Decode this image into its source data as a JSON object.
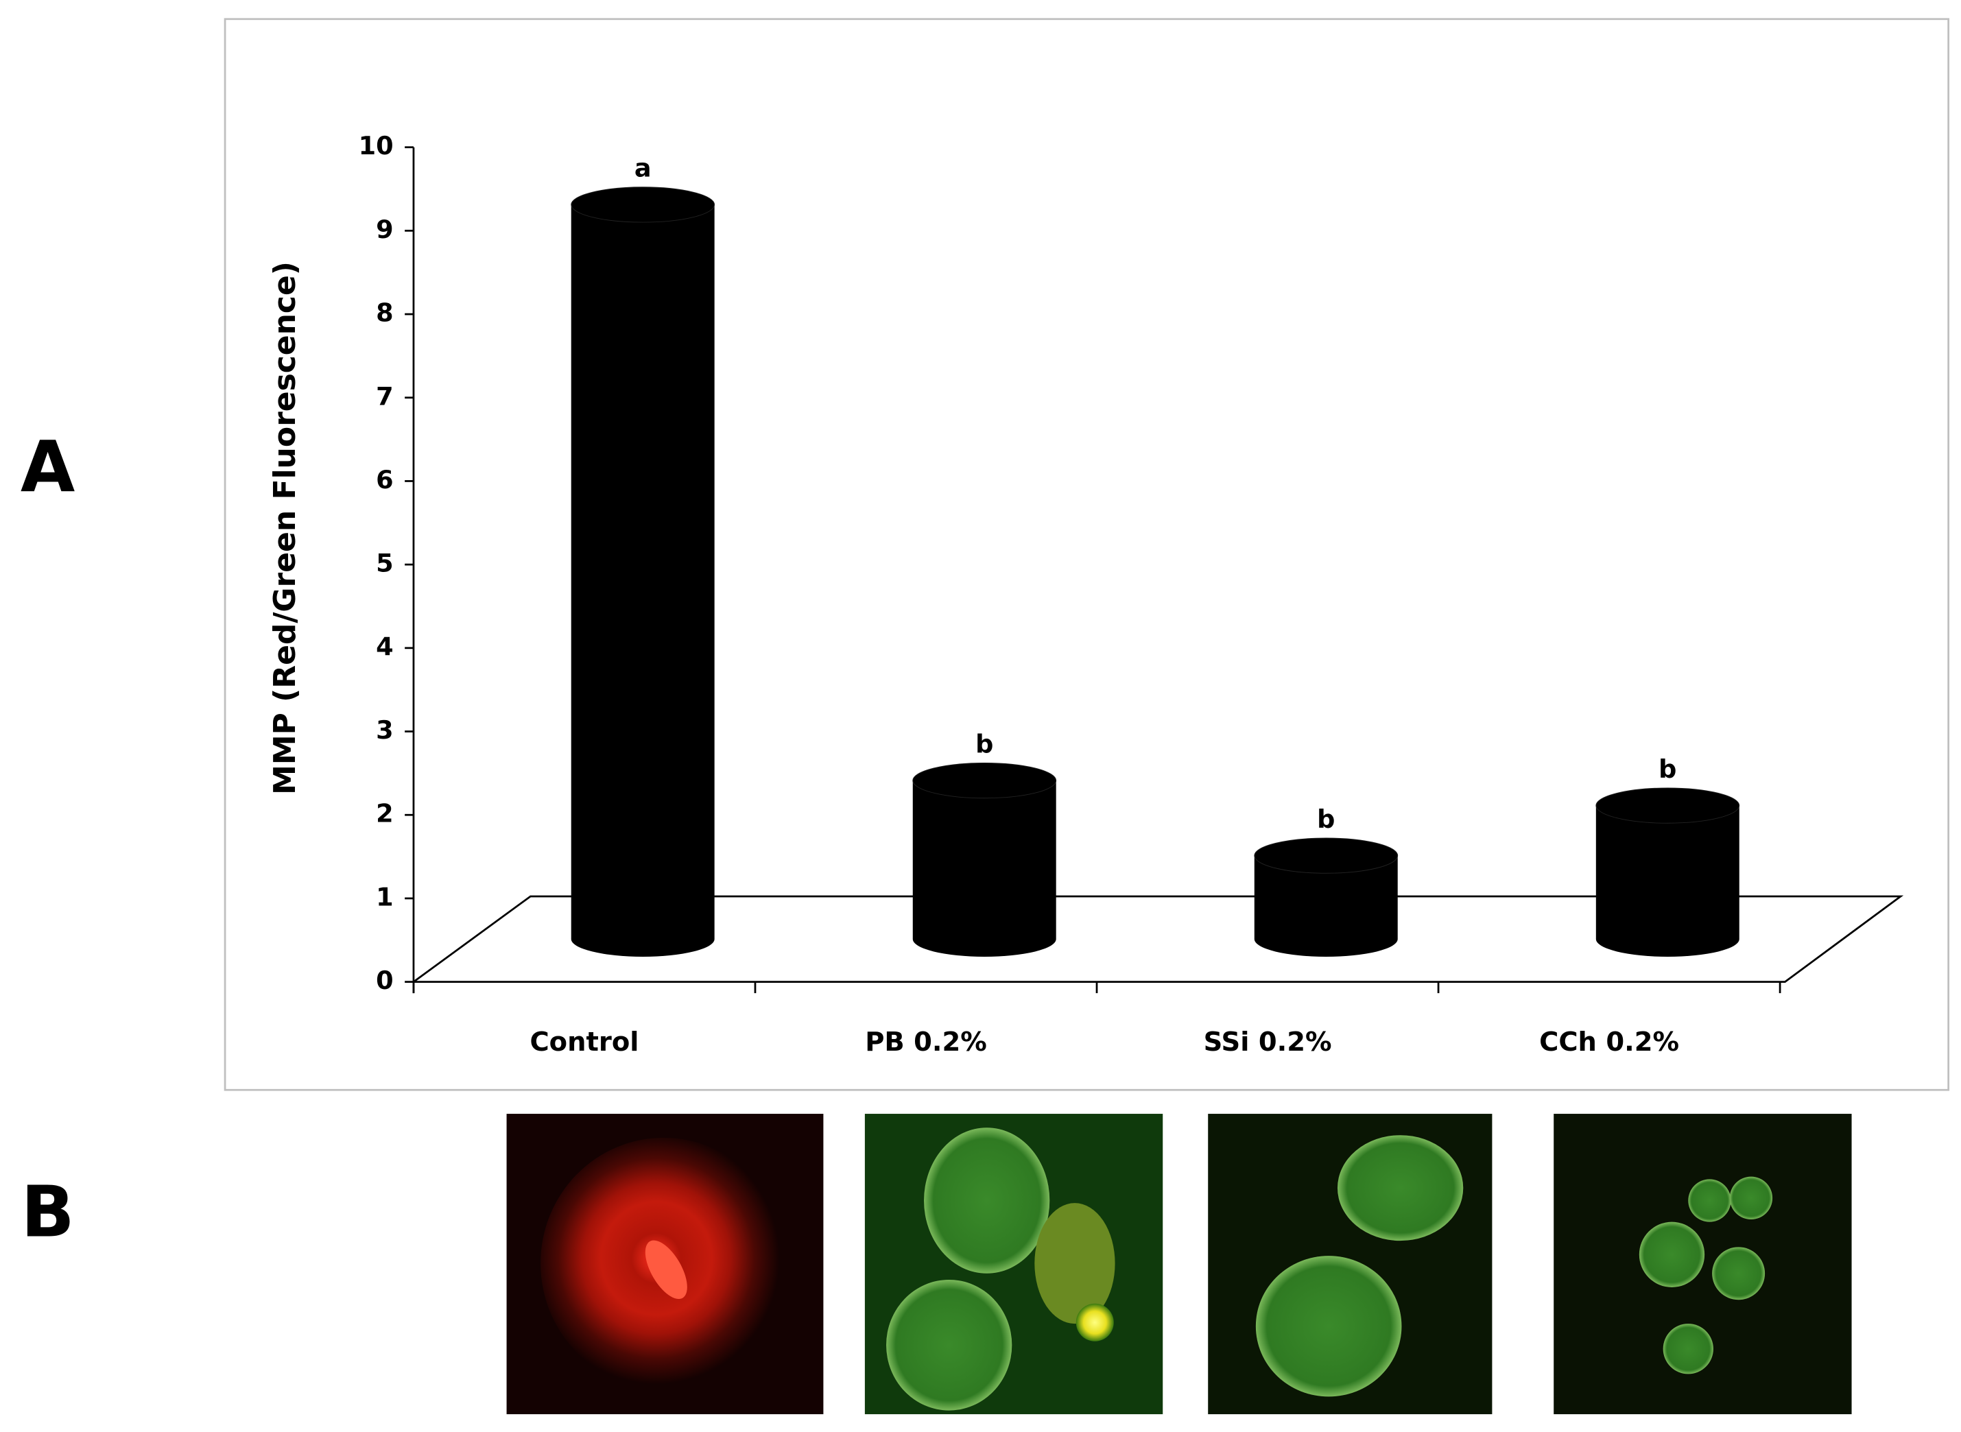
{
  "chart_data": {
    "type": "bar",
    "shape": "cylinder",
    "ylabel": "MMP (Red/Green Fluorescence)",
    "categories": [
      "Control",
      "PB 0.2%",
      "SSi 0.2%",
      "CCh 0.2%"
    ],
    "values": [
      8.8,
      1.9,
      1.0,
      1.6
    ],
    "annotations": [
      "a",
      "b",
      "b",
      "b"
    ],
    "color": "#000000",
    "ylim": [
      0,
      10
    ],
    "yticks": [
      0,
      1,
      2,
      3,
      4,
      5,
      6,
      7,
      8,
      9,
      10
    ],
    "panel_labels": [
      "A",
      "B"
    ]
  }
}
